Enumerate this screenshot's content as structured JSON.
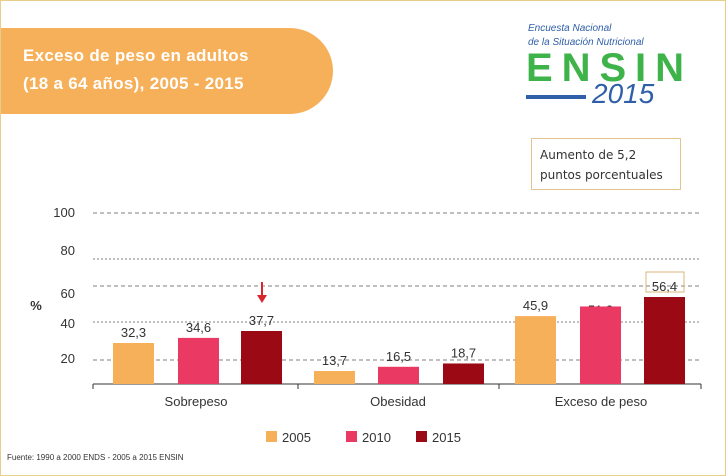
{
  "header": {
    "title_line1": "Exceso de peso en adultos",
    "title_line2": "(18 a 64 años), 2005 - 2015"
  },
  "logo": {
    "line1": "Encuesta Nacional",
    "line2": "de la Situación Nutricional",
    "brand": "ENSIN",
    "year": "2015"
  },
  "annotation": {
    "line1": "Aumento de 5,2",
    "line2": "puntos porcentuales"
  },
  "source": "Fuente: 1990 a 2000 ENDS - 2005 a 2015 ENSIN",
  "colors": {
    "2005": "#F7B05A",
    "2010": "#EA3A64",
    "2015": "#9B0A14",
    "accent": "#F7B05A",
    "arrow": "#D9262E"
  },
  "chart_data": {
    "type": "bar",
    "ylabel": "%",
    "yticks": [
      "100",
      "80",
      "60",
      "40",
      "20"
    ],
    "categories": [
      "Sobrepeso",
      "Obesidad",
      "Exceso de peso"
    ],
    "series": [
      {
        "name": "2005",
        "values": [
          32.3,
          13.7,
          45.9
        ],
        "labels": [
          "32,3",
          "13,7",
          "45,9"
        ]
      },
      {
        "name": "2010",
        "values": [
          34.6,
          16.5,
          51.2
        ],
        "labels": [
          "34,6",
          "16,5",
          "51,2"
        ]
      },
      {
        "name": "2015",
        "values": [
          37.7,
          18.7,
          56.4
        ],
        "labels": [
          "37,7",
          "18,7",
          "56,4"
        ]
      }
    ],
    "legend": "bottom",
    "grid": true
  }
}
